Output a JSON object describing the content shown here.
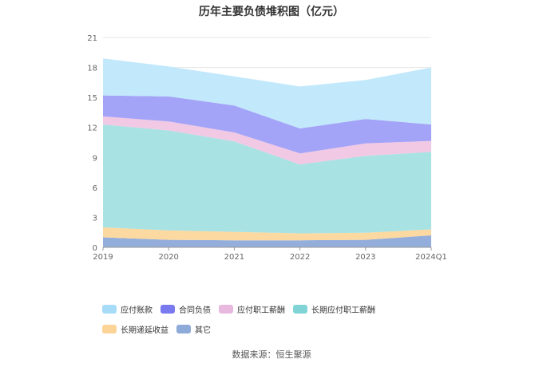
{
  "chart_data": {
    "type": "area",
    "stacked": true,
    "title": "历年主要负债堆积图（亿元）",
    "categories": [
      "2019",
      "2020",
      "2021",
      "2022",
      "2023",
      "2024Q1"
    ],
    "ylim": [
      0,
      21
    ],
    "yticks": [
      "0",
      "3",
      "6",
      "9",
      "12",
      "15",
      "18",
      "21"
    ],
    "grid": true,
    "legend_position": "bottom",
    "series": [
      {
        "name": "其它",
        "color": "#94aedc",
        "values": [
          1.0,
          0.75,
          0.7,
          0.7,
          0.75,
          1.2
        ]
      },
      {
        "name": "长期递延收益",
        "color": "#fcd9a0",
        "values": [
          1.0,
          0.95,
          0.85,
          0.7,
          0.7,
          0.6
        ]
      },
      {
        "name": "长期应付职工薪酬",
        "color": "#a8e2e3",
        "values": [
          10.3,
          10.0,
          9.05,
          6.9,
          7.7,
          7.75
        ]
      },
      {
        "name": "应付职工薪酬",
        "color": "#f1c9e4",
        "values": [
          0.8,
          0.9,
          0.9,
          1.1,
          1.25,
          1.1
        ]
      },
      {
        "name": "合同负债",
        "color": "#a3a3f8",
        "values": [
          2.1,
          2.5,
          2.7,
          2.5,
          2.45,
          1.65
        ]
      },
      {
        "name": "应付账款",
        "color": "#c2e8fb",
        "values": [
          3.7,
          3.0,
          2.9,
          4.2,
          3.9,
          5.7
        ]
      }
    ]
  },
  "legend": [
    {
      "label": "应付账款",
      "color": "#a6dcf8"
    },
    {
      "label": "合同负债",
      "color": "#7a7af0"
    },
    {
      "label": "应付职工薪酬",
      "color": "#e8b8de"
    },
    {
      "label": "长期应付职工薪酬",
      "color": "#80d4d6"
    },
    {
      "label": "长期递延收益",
      "color": "#fcd498"
    },
    {
      "label": "其它",
      "color": "#8eaad8"
    }
  ],
  "source": "数据来源：恒生聚源"
}
